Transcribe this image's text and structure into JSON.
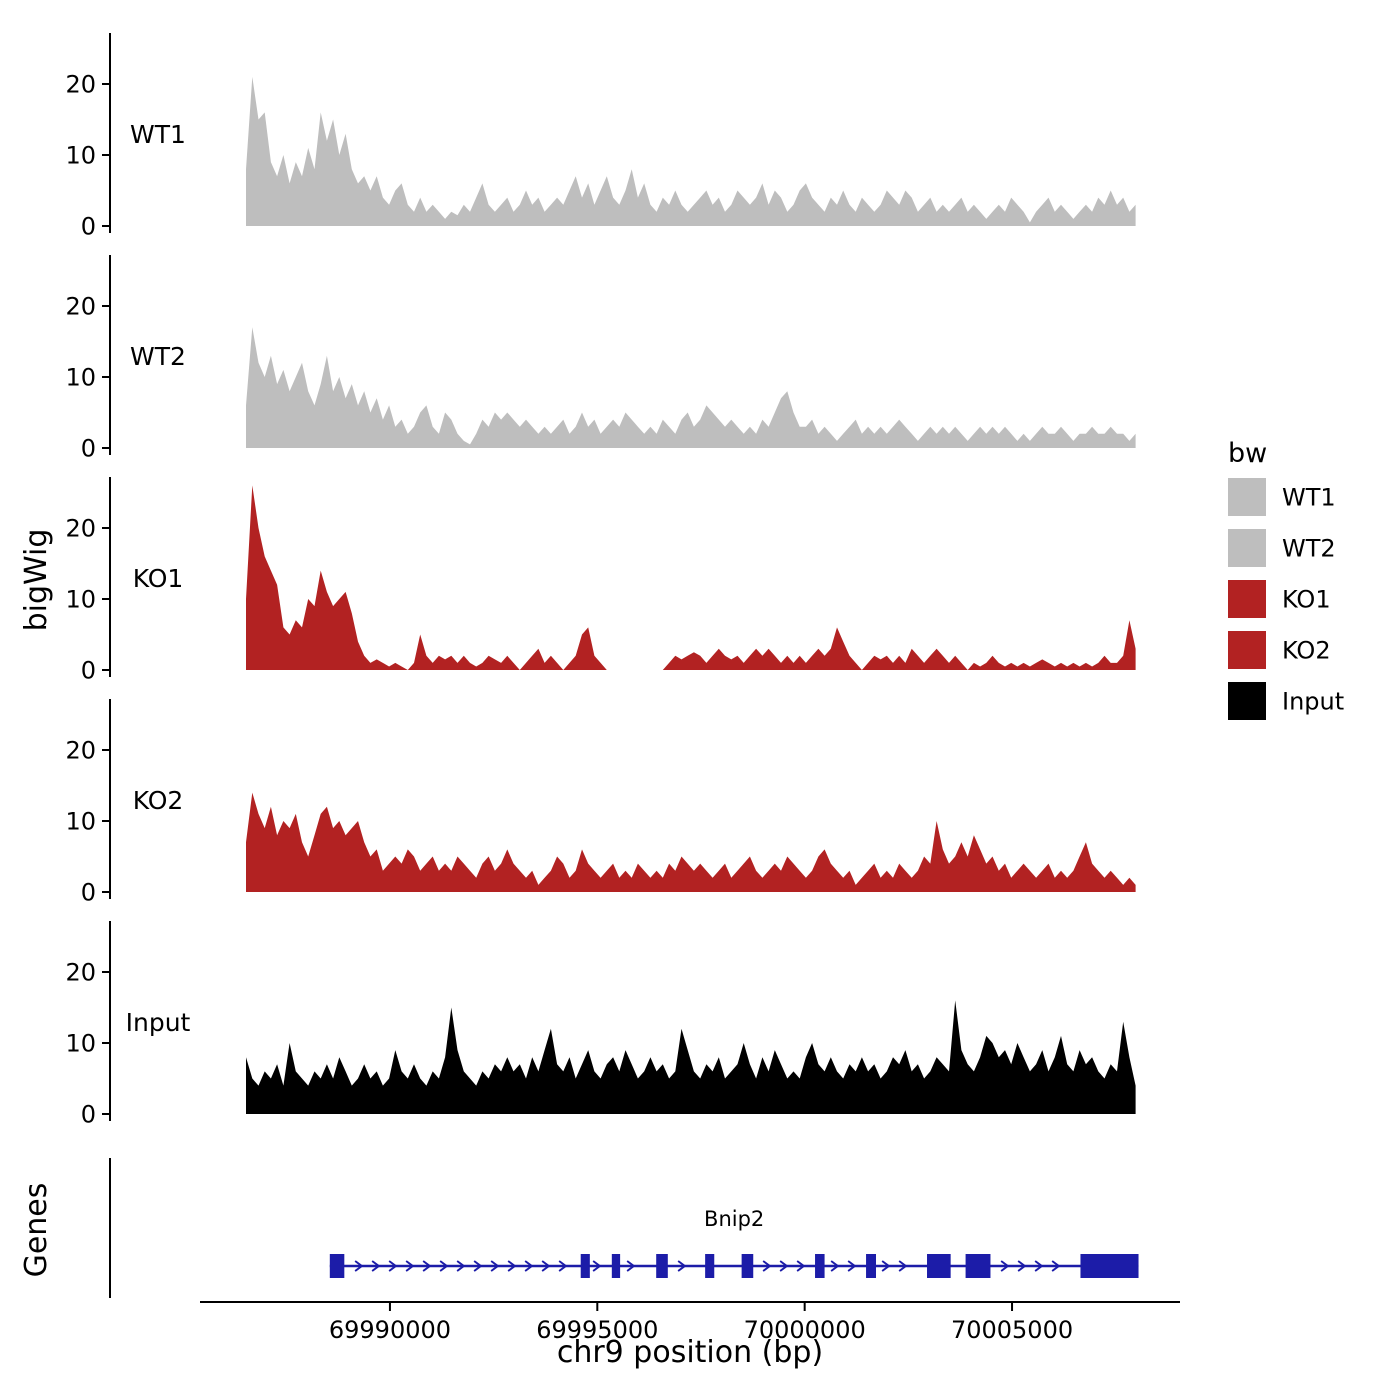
{
  "figure": {
    "ylab": "bigWig",
    "genes_label": "Genes",
    "xlab": "chr9 position (bp)"
  },
  "legend": {
    "title": "bw",
    "entries": [
      {
        "label": "WT1",
        "color": "#bebebe"
      },
      {
        "label": "WT2",
        "color": "#bebebe"
      },
      {
        "label": "KO1",
        "color": "#b22222"
      },
      {
        "label": "KO2",
        "color": "#b22222"
      },
      {
        "label": "Input",
        "color": "#000000"
      }
    ]
  },
  "chart_data": {
    "type": "area",
    "title": "",
    "xlabel": "chr9 position (bp)",
    "ylabel": "bigWig",
    "x_domain": [
      69983250,
      70009050
    ],
    "x_ticks": [
      69990000,
      69995000,
      70000000,
      70005000
    ],
    "x_tick_labels": [
      "69990000",
      "69995000",
      "70000000",
      "70005000"
    ],
    "y_ticks": [
      0,
      10,
      20
    ],
    "y_track_max": 27,
    "x_start": 69986530,
    "x_step": 150,
    "tracks": [
      {
        "name": "WT1",
        "color": "#bebebe",
        "values": [
          8,
          21,
          15,
          16,
          9,
          7,
          10,
          6,
          9,
          7,
          11,
          8,
          16,
          12,
          15,
          10,
          13,
          8,
          6,
          7,
          5,
          7,
          4,
          3,
          5,
          6,
          3,
          2,
          4,
          2,
          3,
          2,
          1,
          2,
          1.5,
          3,
          2,
          4,
          6,
          3,
          2,
          3,
          4,
          2,
          3,
          5,
          3,
          4,
          2,
          3,
          4,
          3,
          5,
          7,
          4,
          6,
          3,
          5,
          7,
          4,
          3,
          5,
          8,
          4,
          6,
          3,
          2,
          4,
          3,
          5,
          3,
          2,
          3,
          4,
          5,
          3,
          4,
          2,
          3,
          5,
          4,
          3,
          4,
          6,
          3,
          5,
          4,
          2,
          3,
          5,
          6,
          4,
          3,
          2,
          4,
          3,
          5,
          3,
          2,
          4,
          3,
          2,
          3,
          5,
          4,
          3,
          5,
          4,
          2,
          3,
          4,
          2,
          3,
          2,
          3,
          4,
          2,
          3,
          2,
          1,
          2,
          3,
          2,
          4,
          3,
          2,
          0.5,
          2,
          3,
          4,
          2,
          3,
          2,
          1,
          2,
          3,
          2,
          4,
          3,
          5,
          3,
          4,
          2,
          3
        ]
      },
      {
        "name": "WT2",
        "color": "#bebebe",
        "values": [
          6,
          17,
          12,
          10,
          13,
          9,
          11,
          8,
          10,
          12,
          8,
          6,
          9,
          13,
          8,
          10,
          7,
          9,
          6,
          8,
          5,
          7,
          4,
          6,
          3,
          4,
          2,
          3,
          5,
          6,
          3,
          2,
          5,
          4,
          2,
          1,
          0.5,
          2,
          4,
          3,
          5,
          4,
          5,
          4,
          3,
          4,
          3,
          2,
          3,
          2,
          3,
          4,
          2,
          3,
          5,
          3,
          4,
          2,
          3,
          4,
          3,
          5,
          4,
          3,
          2,
          3,
          2,
          4,
          3,
          2,
          4,
          5,
          3,
          4,
          6,
          5,
          4,
          3,
          4,
          3,
          2,
          3,
          2,
          4,
          3,
          5,
          7,
          8,
          5,
          3,
          3,
          4,
          2,
          3,
          2,
          1,
          2,
          3,
          4,
          2,
          3,
          2,
          3,
          2,
          3,
          4,
          3,
          2,
          1,
          2,
          3,
          2,
          3,
          2,
          3,
          2,
          1,
          2,
          3,
          2,
          3,
          2,
          3,
          2,
          1,
          2,
          1,
          2,
          3,
          2,
          2,
          3,
          2,
          1,
          2,
          2,
          3,
          2,
          2,
          3,
          2,
          2,
          1,
          2
        ]
      },
      {
        "name": "KO1",
        "color": "#b22222",
        "values": [
          10,
          26,
          20,
          16,
          14,
          12,
          6,
          5,
          7,
          6,
          10,
          9,
          14,
          11,
          9,
          10,
          11,
          8,
          4,
          2,
          1,
          1.5,
          1,
          0.5,
          1,
          0.5,
          0,
          1,
          5,
          2,
          1,
          2,
          1.5,
          2,
          1,
          2,
          1,
          0.5,
          1,
          2,
          1.5,
          1,
          2,
          1,
          0,
          1,
          2,
          3,
          1,
          2,
          1,
          0,
          1,
          2,
          5,
          6,
          2,
          1,
          0,
          0,
          0,
          0,
          0,
          0,
          0,
          0,
          0,
          0,
          1,
          2,
          1.5,
          2,
          2.5,
          2,
          1,
          2,
          3,
          2,
          1.5,
          2,
          1,
          2,
          3,
          2,
          3,
          2,
          1,
          2,
          1,
          2,
          1,
          2,
          3,
          2,
          3,
          6,
          4,
          2,
          1,
          0,
          1,
          2,
          1.5,
          2,
          1,
          2,
          1,
          3,
          2,
          1,
          2,
          3,
          2,
          1,
          2,
          1,
          0,
          1,
          0.5,
          1,
          2,
          1,
          0.5,
          1,
          0.5,
          1,
          0.5,
          1,
          1.5,
          1,
          0.5,
          1,
          0.5,
          1,
          0.5,
          1,
          0.5,
          1,
          2,
          1,
          1,
          2,
          7,
          3
        ]
      },
      {
        "name": "KO2",
        "color": "#b22222",
        "values": [
          7,
          14,
          11,
          9,
          12,
          8,
          10,
          9,
          11,
          7,
          5,
          8,
          11,
          12,
          9,
          10,
          8,
          9,
          10,
          7,
          5,
          6,
          3,
          4,
          5,
          4,
          6,
          5,
          3,
          4,
          5,
          3,
          4,
          3,
          5,
          4,
          3,
          2,
          4,
          5,
          3,
          4,
          6,
          4,
          3,
          2,
          3,
          1,
          2,
          3,
          5,
          4,
          2,
          3,
          6,
          4,
          3,
          2,
          3,
          4,
          2,
          3,
          2,
          4,
          3,
          2,
          3,
          2,
          4,
          3,
          5,
          4,
          3,
          4,
          3,
          2,
          3,
          4,
          2,
          3,
          4,
          5,
          3,
          2,
          3,
          4,
          3,
          5,
          4,
          3,
          2,
          3,
          5,
          6,
          4,
          3,
          2,
          3,
          1,
          2,
          3,
          4,
          2,
          3,
          2,
          4,
          3,
          2,
          3,
          5,
          4,
          10,
          6,
          4,
          5,
          7,
          5,
          8,
          6,
          4,
          5,
          3,
          4,
          2,
          3,
          4,
          3,
          2,
          3,
          4,
          2,
          3,
          2,
          3,
          5,
          7,
          4,
          3,
          2,
          3,
          2,
          1,
          2,
          1
        ]
      },
      {
        "name": "Input",
        "color": "#000000",
        "values": [
          8,
          5,
          4,
          6,
          5,
          7,
          4,
          10,
          6,
          5,
          4,
          6,
          5,
          7,
          5,
          8,
          6,
          4,
          5,
          7,
          5,
          6,
          4,
          5,
          9,
          6,
          5,
          7,
          5,
          4,
          6,
          5,
          8,
          15,
          9,
          6,
          5,
          4,
          6,
          5,
          7,
          6,
          8,
          6,
          7,
          5,
          8,
          6,
          9,
          12,
          7,
          6,
          8,
          5,
          7,
          9,
          6,
          5,
          7,
          8,
          6,
          9,
          7,
          5,
          6,
          8,
          6,
          7,
          5,
          6,
          12,
          9,
          6,
          5,
          7,
          6,
          8,
          5,
          6,
          7,
          10,
          7,
          5,
          8,
          6,
          9,
          7,
          5,
          6,
          5,
          8,
          10,
          7,
          6,
          8,
          6,
          5,
          7,
          6,
          8,
          6,
          7,
          5,
          6,
          8,
          7,
          9,
          6,
          7,
          5,
          6,
          8,
          7,
          6,
          16,
          9,
          7,
          6,
          8,
          11,
          10,
          8,
          9,
          7,
          10,
          8,
          6,
          7,
          9,
          6,
          8,
          11,
          7,
          6,
          9,
          7,
          8,
          6,
          5,
          7,
          6,
          13,
          8,
          4
        ]
      }
    ],
    "gene": {
      "name": "Bnip2",
      "chromosome": "chr9",
      "color": "#1c1ca8",
      "start": 69988550,
      "end": 70008050,
      "strand": "+",
      "exons": [
        [
          69988550,
          69988900
        ],
        [
          69994600,
          69994820
        ],
        [
          69995350,
          69995550
        ],
        [
          69996420,
          69996700
        ],
        [
          69997600,
          69997820
        ],
        [
          69998480,
          69998760
        ],
        [
          70000250,
          70000480
        ],
        [
          70001480,
          70001720
        ],
        [
          70002950,
          70003520
        ],
        [
          70003880,
          70004480
        ],
        [
          70006650,
          70008050
        ]
      ]
    }
  }
}
